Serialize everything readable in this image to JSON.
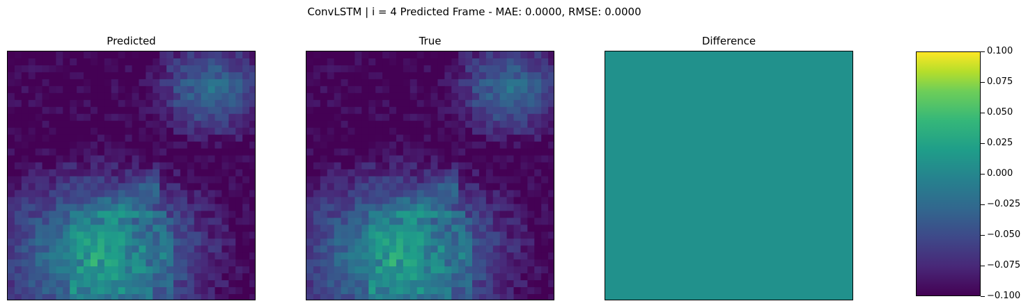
{
  "chart_data": {
    "type": "heatmap",
    "title": "ConvLSTM | i = 4 Predicted Frame - MAE: 0.0000, RMSE: 0.0000",
    "panels": [
      {
        "title": "Predicted",
        "content": "field"
      },
      {
        "title": "True",
        "content": "field"
      },
      {
        "title": "Difference",
        "content": "uniform",
        "value": 0.0
      }
    ],
    "colormap": "viridis",
    "colorbar": {
      "vmin": -0.1,
      "vmax": 0.1,
      "ticks": [
        "0.100",
        "0.075",
        "0.050",
        "0.025",
        "0.000",
        "−0.025",
        "−0.050",
        "−0.075",
        "−0.100"
      ],
      "tick_values": [
        0.1,
        0.075,
        0.05,
        0.025,
        0.0,
        -0.025,
        -0.05,
        -0.075,
        -0.1
      ]
    },
    "grid": false
  }
}
